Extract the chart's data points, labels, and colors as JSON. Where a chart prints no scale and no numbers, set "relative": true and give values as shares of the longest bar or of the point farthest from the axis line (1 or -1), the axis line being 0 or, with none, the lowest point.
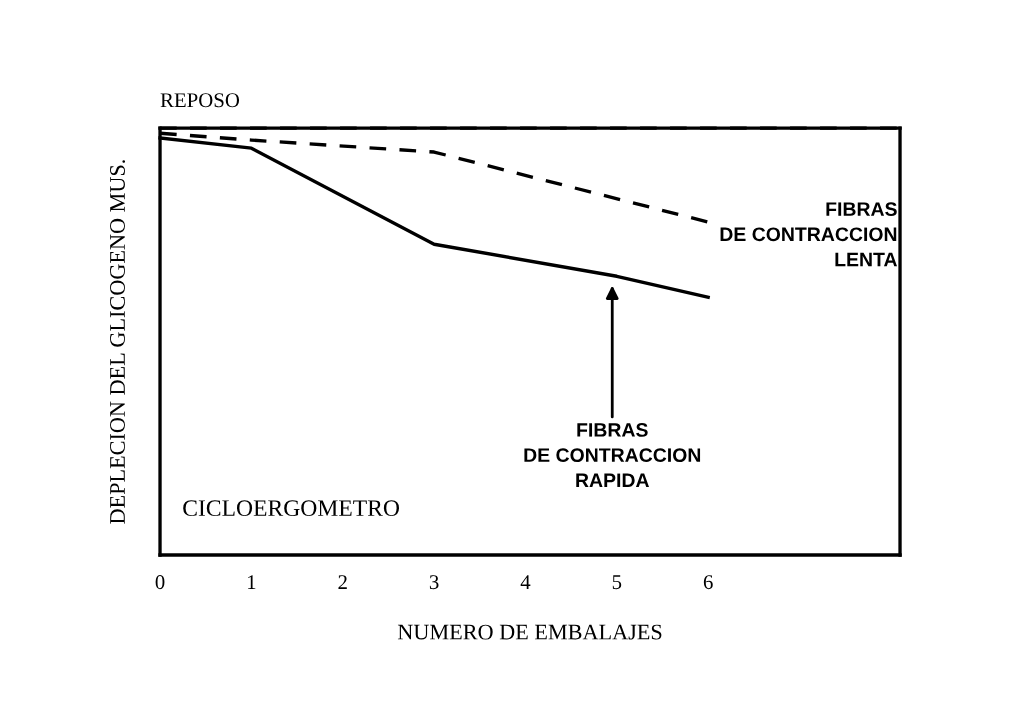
{
  "chart_data": {
    "type": "line",
    "relative": true,
    "xlabel": "NUMERO DE EMBALAJES",
    "ylabel": "DEPLECION DEL GLICOGENO MUS.",
    "x": [
      0,
      1,
      3,
      5,
      6
    ],
    "xlim": [
      0,
      8.1
    ],
    "xticks": [
      0,
      1,
      2,
      3,
      4,
      5,
      6
    ],
    "series": [
      {
        "name": "REPOSO",
        "color": "#000000",
        "line_style": "dashed",
        "x": [
          0,
          8.1
        ],
        "values": [
          1,
          1
        ]
      },
      {
        "name": "FIBRAS\nDE CONTRACCION\nLENTA",
        "color": "#000000",
        "line_style": "dashed",
        "x": [
          0,
          1,
          3,
          6
        ],
        "values": [
          0.988,
          0.972,
          0.944,
          0.78
        ]
      },
      {
        "name": "FIBRAS\nDE CONTRACCION\nRAPIDA",
        "color": "#000000",
        "line_style": "solid",
        "values": [
          0.977,
          0.953,
          0.728,
          0.653,
          0.604
        ]
      }
    ],
    "annotations": [
      "CICLOERGOMETRO"
    ],
    "grid": false,
    "legend": false
  }
}
